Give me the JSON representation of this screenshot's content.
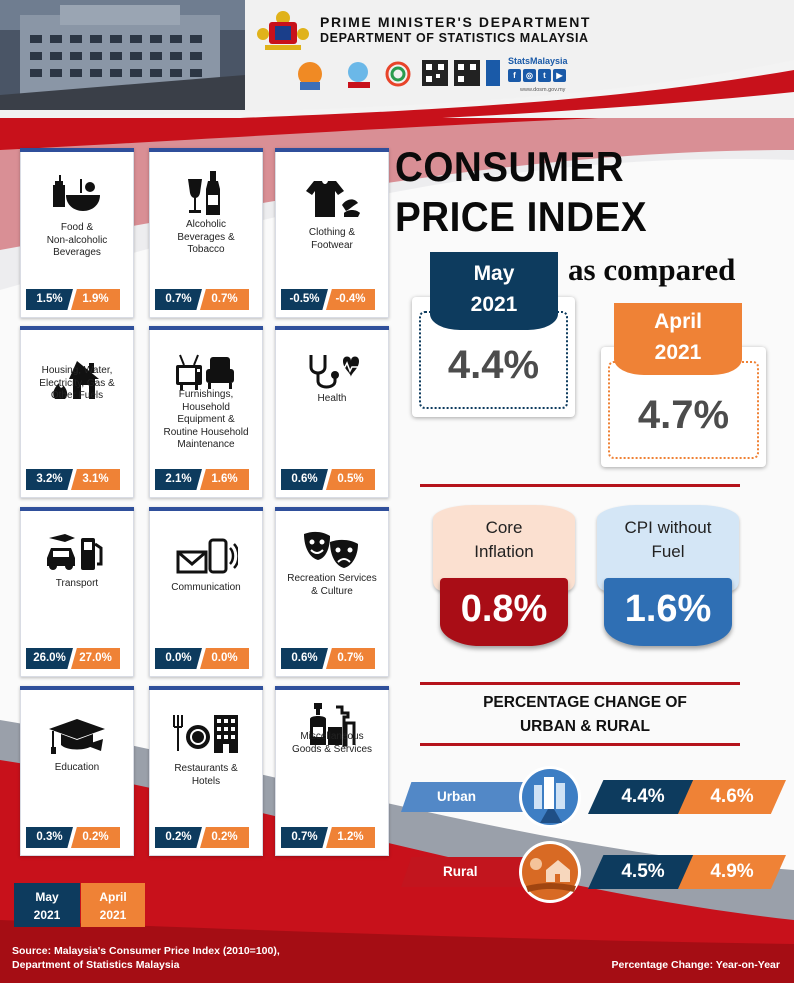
{
  "header": {
    "dept_line1": "PRIME MINISTER'S DEPARTMENT",
    "dept_line2": "DEPARTMENT OF STATISTICS MALAYSIA",
    "brand": "StatsMalaysia",
    "website": "www.dosm.gov.my",
    "social": [
      "f",
      "◎",
      "t",
      "▶"
    ]
  },
  "title": {
    "line1": "CONSUMER",
    "line2": "PRICE INDEX",
    "as_compared": "as compared"
  },
  "headline": {
    "may_month": "May",
    "may_year": "2021",
    "may_value": "4.4%",
    "apr_month": "April",
    "apr_year": "2021",
    "apr_value": "4.7%"
  },
  "core": {
    "label_line1": "Core",
    "label_line2": "Inflation",
    "value": "0.8%"
  },
  "fuel": {
    "label_line1": "CPI without",
    "label_line2": "Fuel",
    "value": "1.6%"
  },
  "regions": {
    "heading_line1": "PERCENTAGE CHANGE OF",
    "heading_line2": "URBAN & RURAL",
    "urban": {
      "label": "Urban",
      "may": "4.4%",
      "apr": "4.6%"
    },
    "rural": {
      "label": "Rural",
      "may": "4.5%",
      "apr": "4.9%"
    }
  },
  "categories": [
    {
      "label": "Food &\nNon-alcoholic\nBeverages",
      "may": "1.5%",
      "apr": "1.9%",
      "icon": "food-icon"
    },
    {
      "label": "Alcoholic\nBeverages &\nTobacco",
      "may": "0.7%",
      "apr": "0.7%",
      "icon": "bottle-icon"
    },
    {
      "label": "Clothing &\nFootwear",
      "may": "-0.5%",
      "apr": "-0.4%",
      "icon": "clothing-icon"
    },
    {
      "label": "Housing, Water,\nElectricity, Gas &\nOther Fuels",
      "may": "3.2%",
      "apr": "3.1%",
      "icon": "house-fire-icon"
    },
    {
      "label": "Furnishings,\nHousehold\nEquipment &\nRoutine Household\nMaintenance",
      "may": "2.1%",
      "apr": "1.6%",
      "icon": "furniture-icon"
    },
    {
      "label": "Health",
      "may": "0.6%",
      "apr": "0.5%",
      "icon": "stethoscope-icon"
    },
    {
      "label": "Transport",
      "may": "26.0%",
      "apr": "27.0%",
      "icon": "transport-icon"
    },
    {
      "label": "Communication",
      "may": "0.0%",
      "apr": "0.0%",
      "icon": "phone-mail-icon"
    },
    {
      "label": "Recreation Services\n& Culture",
      "may": "0.6%",
      "apr": "0.7%",
      "icon": "theatre-masks-icon"
    },
    {
      "label": "Education",
      "may": "0.3%",
      "apr": "0.2%",
      "icon": "graduation-cap-icon"
    },
    {
      "label": "Restaurants &\nHotels",
      "may": "0.2%",
      "apr": "0.2%",
      "icon": "restaurant-hotel-icon"
    },
    {
      "label": "Miscellaneous\nGoods & Services",
      "may": "0.7%",
      "apr": "1.2%",
      "icon": "cleaning-products-icon"
    }
  ],
  "legend": {
    "may_line1": "May",
    "may_line2": "2021",
    "apr_line1": "April",
    "apr_line2": "2021"
  },
  "footer": {
    "source_line1": "Source: Malaysia's Consumer Price Index (2010=100),",
    "source_line2": "Department of  Statistics Malaysia",
    "note": "Percentage Change:  Year-on-Year"
  },
  "colors": {
    "navy": "#0d3b5e",
    "orange": "#ef8236",
    "red": "#a90d16",
    "blue": "#2f6fb4",
    "urban_blue": "#5288c7"
  }
}
